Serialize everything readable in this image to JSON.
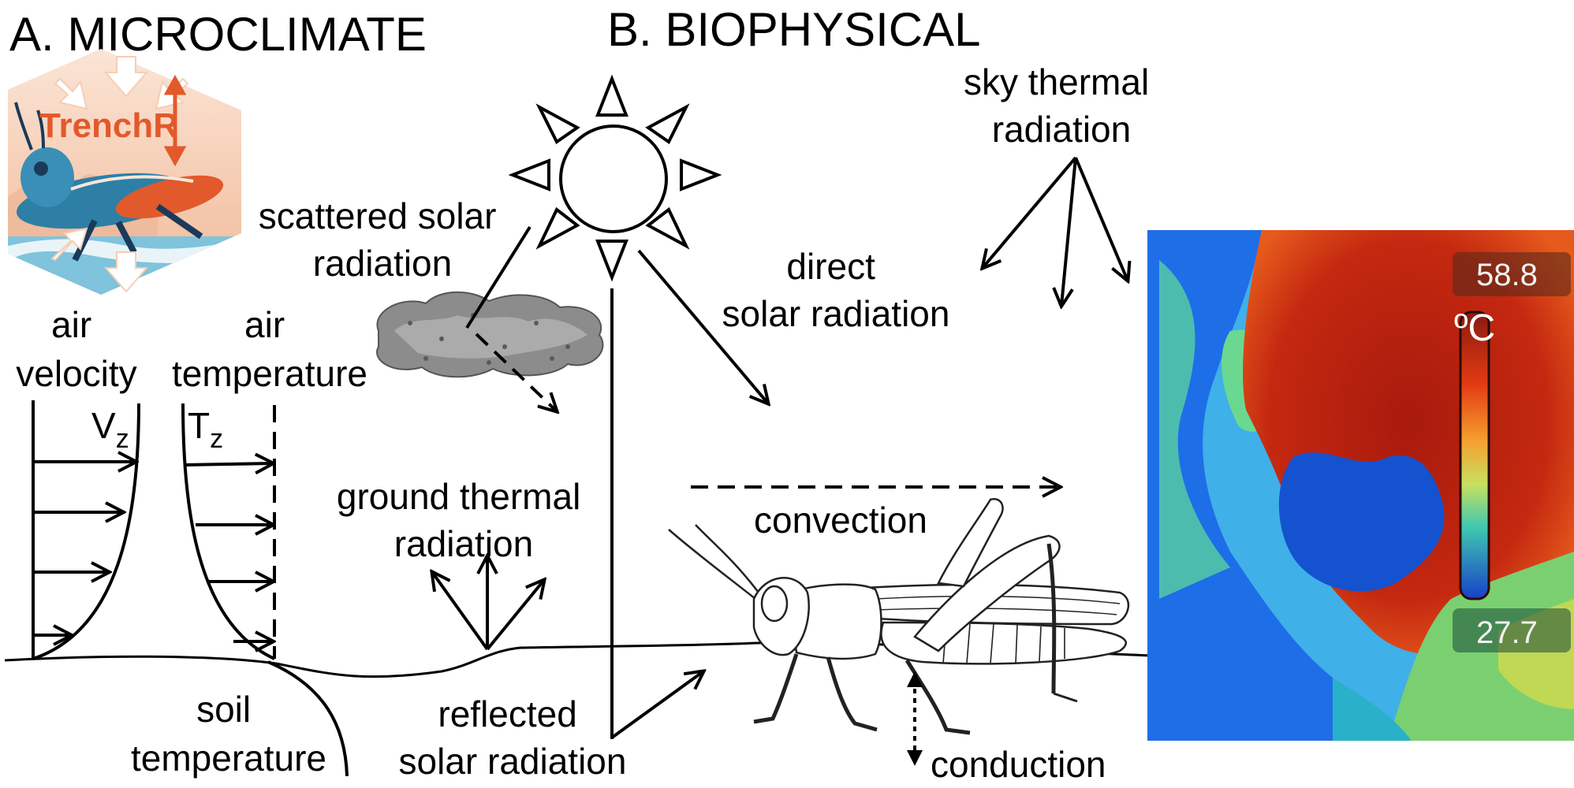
{
  "panel_a": {
    "title": "A. MICROCLIMATE",
    "logo_text": "TrenchR",
    "air_velocity": [
      "air",
      "velocity"
    ],
    "air_temperature": [
      "air",
      "temperature"
    ],
    "velocity_symbol": "V",
    "velocity_sub": "z",
    "temperature_symbol": "T",
    "temperature_sub": "z",
    "soil_temperature": [
      "soil",
      "temperature"
    ]
  },
  "panel_b": {
    "title": "B. BIOPHYSICAL",
    "scattered": [
      "scattered solar",
      "radiation"
    ],
    "direct": [
      "direct",
      "solar radiation"
    ],
    "sky": [
      "sky thermal",
      "radiation"
    ],
    "ground": [
      "ground thermal",
      "radiation"
    ],
    "convection": "convection",
    "reflected": [
      "reflected",
      "solar radiation"
    ],
    "conduction": "conduction"
  },
  "thermal_image": {
    "max": "58.8",
    "min": "27.7",
    "unit": "ºC"
  },
  "colors": {
    "logo_orange": "#e2592b",
    "logo_blue": "#2d7fa6",
    "logo_peach": "#f6cdb5",
    "thermal_red": "#b01e0a",
    "thermal_blue": "#1a5bd0"
  }
}
